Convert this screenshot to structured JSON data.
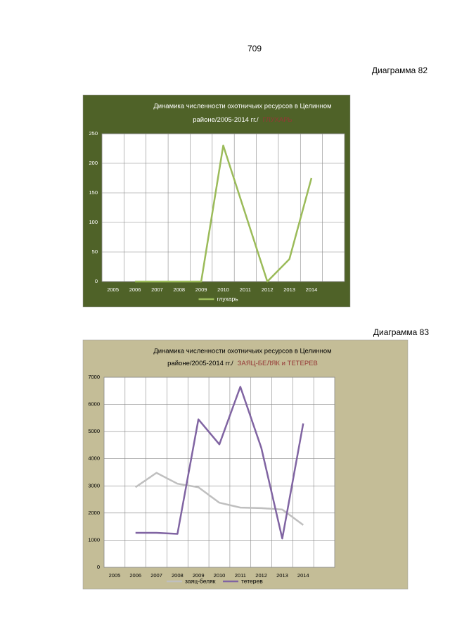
{
  "page_number": "709",
  "captions": [
    "Диаграмма 82",
    "Диаграмма 83"
  ],
  "chart_data": [
    {
      "type": "line",
      "title_lines": [
        "Динамика численности охотничьих ресурсов  в Целинном",
        "районе/2005-2014 гг./"
      ],
      "title_highlight": "ГЛУХАРЬ",
      "categories": [
        "2005",
        "2006",
        "2007",
        "2008",
        "2009",
        "2010",
        "2011",
        "2012",
        "2013",
        "2014",
        null
      ],
      "series": [
        {
          "name": "глухарь",
          "color": "#9bbb59",
          "values": [
            null,
            0,
            0,
            0,
            0,
            230,
            115,
            0,
            38,
            175,
            null
          ]
        }
      ],
      "ylim": [
        0,
        250
      ],
      "yticks": [
        0,
        50,
        100,
        150,
        200,
        250
      ],
      "grid": true,
      "background": "#4f6228",
      "title_color": "#ffffff",
      "highlight_color": "#953735",
      "label_color": "#ffffff"
    },
    {
      "type": "line",
      "title_lines": [
        "Динамика численности  охотничьих ресурсов   в Целинном",
        "районе/2005-2014  гг./"
      ],
      "title_highlight": "ЗАЯЦ-БЕЛЯК и ТЕТЕРЕВ",
      "categories": [
        "2005",
        "2006",
        "2007",
        "2008",
        "2009",
        "2010",
        "2011",
        "2012",
        "2013",
        "2014",
        null
      ],
      "series": [
        {
          "name": "заяц-беляк",
          "color": "#bfbfbf",
          "values": [
            null,
            2950,
            3480,
            3080,
            2950,
            2380,
            2200,
            2180,
            2130,
            1560,
            null
          ]
        },
        {
          "name": "тетерев",
          "color": "#8064a2",
          "values": [
            null,
            1270,
            1270,
            1230,
            5450,
            4530,
            6650,
            4400,
            1060,
            5300,
            null
          ]
        }
      ],
      "ylim": [
        0,
        7000
      ],
      "yticks": [
        0,
        1000,
        2000,
        3000,
        4000,
        5000,
        6000,
        7000
      ],
      "grid": true,
      "background": "#c4bd97",
      "title_color": "#000000",
      "highlight_color": "#953735",
      "label_color": "#000000"
    }
  ]
}
